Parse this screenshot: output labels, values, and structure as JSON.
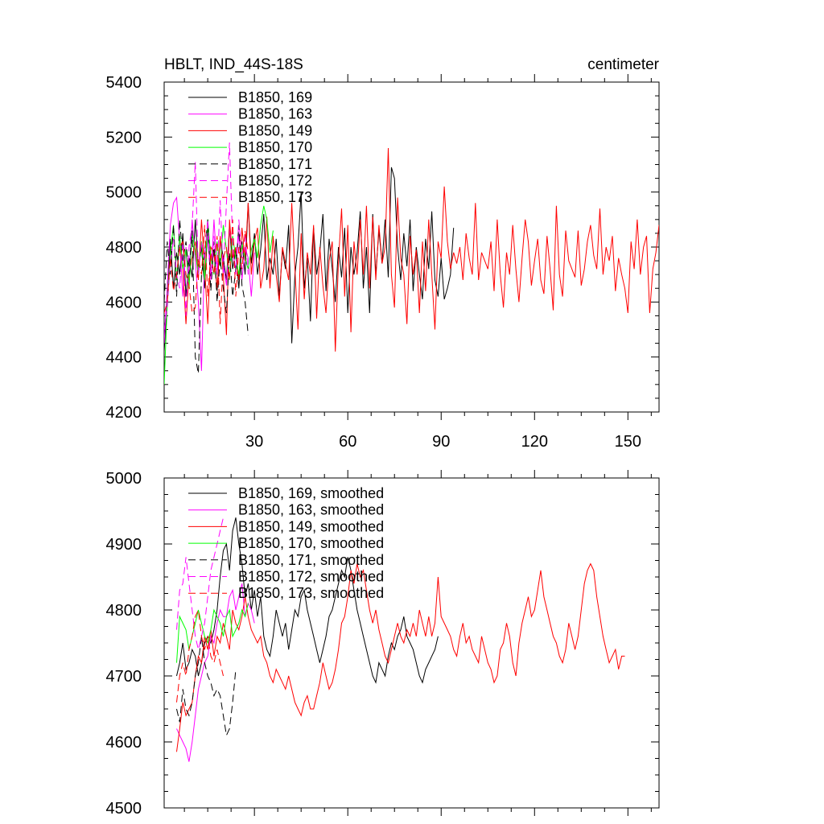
{
  "header": {
    "title": "HBLT, IND_44S-18S",
    "units": "centimeter"
  },
  "chart_data": [
    {
      "type": "line",
      "title": "HBLT, IND_44S-18S",
      "units": "centimeter",
      "xlim": [
        1,
        160
      ],
      "ylim": [
        4200,
        5400
      ],
      "xticks": [
        30,
        60,
        90,
        120,
        150
      ],
      "xtick_labels": [
        "30",
        "60",
        "90",
        "120",
        "150"
      ],
      "yticks": [
        4200,
        4400,
        4600,
        4800,
        5000,
        5200,
        5400
      ],
      "ytick_labels": [
        "4200",
        "4400",
        "4600",
        "4800",
        "5000",
        "5200",
        "5400"
      ],
      "legend_position": "top-left",
      "series": [
        {
          "name": "B1850, 169",
          "color": "#000000",
          "dash": "solid",
          "x_start": 1,
          "values": [
            4420,
            4610,
            4830,
            4650,
            4780,
            4700,
            4850,
            4620,
            4760,
            4690,
            4900,
            4720,
            4800,
            4650,
            4870,
            4700,
            4790,
            4640,
            4830,
            4760,
            4680,
            4880,
            4720,
            4790,
            4650,
            4820,
            4700,
            4960,
            4740,
            4850,
            4700,
            4790,
            4920,
            4680,
            4760,
            4700,
            4830,
            4620,
            4790,
            4720,
            4880,
            4450,
            4700,
            4800,
            5000,
            4650,
            4760,
            4530,
            4870,
            4700,
            4780,
            4920,
            4640,
            4830,
            4720,
            4600,
            4800,
            4690,
            4870,
            4560,
            4800,
            4700,
            4780,
            4930,
            4650,
            4800,
            4560,
            4920,
            4700,
            4860,
            4740,
            4900,
            4690,
            5090,
            5050,
            4800,
            4680,
            4850,
            4730,
            4900,
            4640,
            4800,
            4700,
            4610,
            4830,
            4720,
            4930,
            4680,
            4620,
            4760,
            4610,
            4650,
            4700,
            4870
          ]
        },
        {
          "name": "B1850, 163",
          "color": "#ff00ff",
          "dash": "solid",
          "x_start": 1,
          "values": [
            4450,
            4660,
            4880,
            4960,
            4980,
            4820,
            4620,
            4800,
            4700,
            4900,
            4750,
            4600,
            4350,
            4780,
            4840,
            4680,
            4900,
            4720,
            4820,
            4740,
            4660,
            4870,
            4780,
            4720,
            4850,
            4680,
            4800,
            4760,
            4620,
            4780
          ]
        },
        {
          "name": "B1850, 149",
          "color": "#ff0000",
          "dash": "solid",
          "x_start": 6,
          "values": [
            4800,
            4720,
            4520,
            4700,
            4760,
            4820,
            4680,
            4900,
            4730,
            4520,
            4800,
            4780,
            4650,
            4840,
            4700,
            4480,
            4900,
            4760,
            4800,
            4680,
            4870,
            4750,
            4960,
            4700,
            4820,
            4870,
            4650,
            4720,
            4910,
            4650,
            4840,
            4700,
            4600,
            4800,
            4740,
            4680,
            4960,
            4720,
            4500,
            4850,
            4610,
            4780,
            4700,
            4880,
            4540,
            4800,
            4660,
            4560,
            4750,
            4820,
            4420,
            4750,
            4940,
            4620,
            4880,
            4490,
            4820,
            4700,
            4900,
            4700,
            4950,
            4650,
            4910,
            4680,
            4880,
            4740,
            4800,
            5160,
            4700,
            4580,
            4980,
            4760,
            4700,
            4520,
            4840,
            4700,
            4790,
            4560,
            4820,
            4640,
            4900,
            4700,
            4500,
            4820,
            4760,
            5020,
            4820,
            4720,
            4780,
            4740,
            4800,
            4680,
            4850,
            4760,
            4700,
            4960,
            4680,
            4780,
            4750,
            4720,
            4820,
            4640,
            4900,
            4700,
            4580,
            4780,
            4700,
            4880,
            4720,
            4600,
            4760,
            4900,
            4820,
            4660,
            4750,
            4830,
            4680,
            4630,
            4840,
            4720,
            4570,
            4950,
            4700,
            4620,
            4860,
            4750,
            4720,
            4690,
            4860,
            4660,
            4720,
            4820,
            4880,
            4770,
            4720,
            4940,
            4700,
            4800,
            4750,
            4840,
            4640,
            4760,
            4700,
            4650,
            4560,
            4820,
            4720,
            4900,
            4700,
            4800,
            4840,
            4560,
            4720,
            4780,
            4880,
            4700
          ]
        },
        {
          "name": "B1850, 170",
          "color": "#00ff00",
          "dash": "solid",
          "x_start": 1,
          "values": [
            4300,
            4600,
            4780,
            4880,
            4680,
            4840,
            4720,
            4790,
            4650,
            4850,
            4780,
            4700,
            4820,
            4680,
            4900,
            4760,
            4700,
            4820,
            4730,
            4880,
            4790,
            4680,
            4840,
            4760,
            4700,
            4810,
            4760,
            4720,
            4790,
            4830,
            4760,
            4880,
            4950,
            4900,
            4780,
            4860
          ]
        },
        {
          "name": "B1850, 171",
          "color": "#000000",
          "dash": "dashed",
          "x_start": 1,
          "values": [
            4600,
            4820,
            4700,
            4880,
            4620,
            4900,
            4750,
            4820,
            4700,
            4860,
            4400,
            4340,
            4700,
            4780,
            4900,
            4640,
            4820,
            4600,
            4760,
            4650,
            4560,
            4780,
            4620,
            4720,
            4880,
            4660,
            4600,
            4480
          ]
        },
        {
          "name": "B1850, 172",
          "color": "#ff00ff",
          "dash": "dashed",
          "x_start": 1,
          "values": [
            4500,
            4580,
            4750,
            4830,
            4700,
            4650,
            4820,
            4550,
            4800,
            4880,
            5110,
            4700,
            4820,
            4760,
            4900,
            4680,
            4840,
            4700,
            4970,
            4700,
            4960,
            5180,
            4820,
            4700,
            4900,
            4760,
            4850,
            4700
          ]
        },
        {
          "name": "B1850, 173",
          "color": "#ff0000",
          "dash": "dashed",
          "x_start": 1,
          "values": [
            4560,
            4600,
            4760,
            4640,
            4700,
            4800,
            4820,
            4700,
            4660,
            4560,
            4580,
            4760,
            4700,
            4880,
            4620,
            4780,
            4700,
            4840,
            4520,
            4760,
            4800,
            4680,
            4900,
            4620,
            4800,
            4720,
            4860,
            4780
          ]
        }
      ]
    },
    {
      "type": "line",
      "xlim": [
        1,
        160
      ],
      "ylim": [
        4500,
        5000
      ],
      "yticks": [
        4500,
        4600,
        4700,
        4800,
        4900,
        5000
      ],
      "ytick_labels": [
        "4500",
        "4600",
        "4700",
        "4800",
        "4900",
        "5000"
      ],
      "legend_position": "top-left",
      "series": [
        {
          "name": "B1850, 169, smoothed",
          "color": "#000000",
          "dash": "solid",
          "x_start": 5,
          "values": [
            4700,
            4720,
            4750,
            4710,
            4720,
            4740,
            4730,
            4700,
            4720,
            4750,
            4760,
            4750,
            4770,
            4800,
            4850,
            4890,
            4900,
            4860,
            4920,
            4940,
            4900,
            4870,
            4820,
            4840,
            4800,
            4830,
            4790,
            4820,
            4760,
            4740,
            4730,
            4760,
            4800,
            4780,
            4760,
            4780,
            4740,
            4770,
            4800,
            4790,
            4820,
            4830,
            4800,
            4780,
            4760,
            4740,
            4720,
            4740,
            4760,
            4790,
            4800,
            4820,
            4840,
            4860,
            4850,
            4880,
            4860,
            4830,
            4800,
            4780,
            4760,
            4740,
            4720,
            4700,
            4690,
            4720,
            4710,
            4700,
            4730,
            4750,
            4740,
            4760,
            4770,
            4790,
            4760,
            4750,
            4740,
            4720,
            4700,
            4690,
            4710,
            4720,
            4730,
            4740,
            4760
          ]
        },
        {
          "name": "B1850, 163, smoothed",
          "color": "#ff00ff",
          "dash": "solid",
          "x_start": 5,
          "values": [
            4620,
            4610,
            4600,
            4590,
            4570,
            4600,
            4640,
            4680,
            4700,
            4720,
            4730,
            4760,
            4750,
            4780,
            4800,
            4790,
            4790,
            4820,
            4830,
            4800,
            4820,
            4840,
            4790,
            4810,
            4800,
            4780
          ]
        },
        {
          "name": "B1850, 149, smoothed",
          "color": "#ff0000",
          "dash": "solid",
          "x_start": 5,
          "values": [
            4585,
            4620,
            4660,
            4640,
            4650,
            4660,
            4700,
            4730,
            4720,
            4760,
            4740,
            4770,
            4730,
            4760,
            4750,
            4780,
            4760,
            4740,
            4800,
            4780,
            4770,
            4790,
            4820,
            4790,
            4770,
            4760,
            4750,
            4760,
            4730,
            4720,
            4700,
            4690,
            4710,
            4700,
            4690,
            4680,
            4700,
            4680,
            4660,
            4650,
            4640,
            4660,
            4670,
            4650,
            4650,
            4670,
            4690,
            4720,
            4700,
            4680,
            4690,
            4710,
            4740,
            4780,
            4790,
            4820,
            4860,
            4840,
            4870,
            4850,
            4860,
            4830,
            4800,
            4780,
            4800,
            4770,
            4750,
            4730,
            4720,
            4740,
            4760,
            4780,
            4760,
            4750,
            4770,
            4760,
            4780,
            4760,
            4800,
            4780,
            4760,
            4790,
            4760,
            4780,
            4850,
            4790,
            4780,
            4770,
            4760,
            4740,
            4730,
            4760,
            4780,
            4750,
            4760,
            4740,
            4730,
            4720,
            4760,
            4740,
            4720,
            4710,
            4690,
            4700,
            4740,
            4750,
            4780,
            4760,
            4720,
            4700,
            4750,
            4780,
            4800,
            4820,
            4790,
            4800,
            4830,
            4860,
            4820,
            4800,
            4780,
            4760,
            4750,
            4730,
            4720,
            4740,
            4780,
            4760,
            4740,
            4760,
            4800,
            4840,
            4860,
            4870,
            4860,
            4820,
            4790,
            4760,
            4740,
            4720,
            4730,
            4740,
            4710,
            4730,
            4730
          ]
        },
        {
          "name": "B1850, 170, smoothed",
          "color": "#00ff00",
          "dash": "solid",
          "x_start": 5,
          "values": [
            4720,
            4790,
            4780,
            4770,
            4740,
            4760,
            4780,
            4800,
            4780,
            4760,
            4750,
            4770,
            4800,
            4790,
            4780,
            4760,
            4790,
            4800,
            4760,
            4770,
            4780,
            4800,
            4790,
            4810
          ]
        },
        {
          "name": "B1850, 171, smoothed",
          "color": "#000000",
          "dash": "dashed",
          "x_start": 5,
          "values": [
            4650,
            4630,
            4680,
            4650,
            4640,
            4660,
            4700,
            4720,
            4760,
            4720,
            4700,
            4690,
            4670,
            4680,
            4670,
            4640,
            4610,
            4620,
            4660,
            4710
          ]
        },
        {
          "name": "B1850, 172, smoothed",
          "color": "#ff00ff",
          "dash": "dashed",
          "x_start": 5,
          "values": [
            4770,
            4830,
            4840,
            4880,
            4840,
            4800,
            4760,
            4740,
            4760,
            4780,
            4820,
            4860,
            4880,
            4900,
            4920,
            4940
          ]
        },
        {
          "name": "B1850, 173, smoothed",
          "color": "#ff0000",
          "dash": "dashed",
          "x_start": 5,
          "values": [
            4660,
            4700,
            4720,
            4700,
            4740,
            4760,
            4790,
            4800,
            4760,
            4740,
            4760,
            4730,
            4720,
            4740,
            4720,
            4700
          ]
        }
      ]
    }
  ]
}
